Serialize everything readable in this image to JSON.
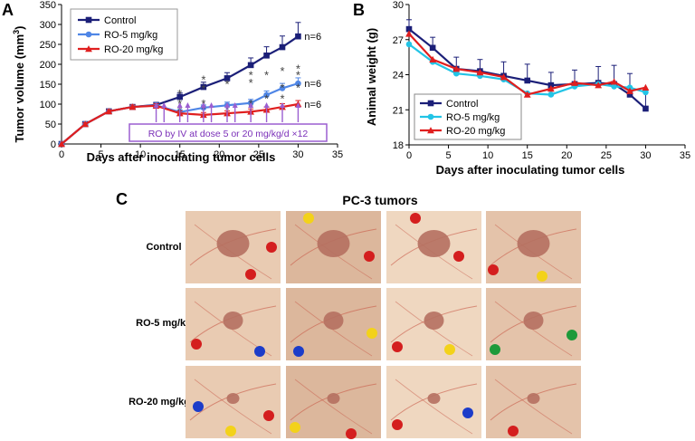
{
  "figure": {
    "panel_a_letter": "A",
    "panel_b_letter": "B",
    "panel_c_letter": "C"
  },
  "chart_data": [
    {
      "type": "line",
      "panel": "A",
      "xlabel": "Days after inoculating tumor cells",
      "ylabel_main": "Tumor volume (mm",
      "ylabel_sup": "3",
      "ylabel_end": ")",
      "xlim": [
        0,
        35
      ],
      "ylim": [
        0,
        350
      ],
      "xticks": [
        0,
        5,
        10,
        15,
        20,
        25,
        30,
        35
      ],
      "yticks": [
        0,
        50,
        100,
        150,
        200,
        250,
        300,
        350
      ],
      "grid": false,
      "legend_position": "top-left",
      "series": [
        {
          "name": "Control",
          "color": "#1b1f78",
          "marker": "square",
          "x": [
            0,
            3,
            6,
            9,
            12,
            15,
            18,
            21,
            24,
            26,
            28,
            30
          ],
          "y": [
            0,
            50,
            82,
            93,
            98,
            118,
            143,
            165,
            198,
            222,
            243,
            270
          ],
          "err": [
            0,
            3,
            4,
            5,
            6,
            10,
            12,
            14,
            18,
            22,
            28,
            35
          ]
        },
        {
          "name": "RO-5 mg/kg",
          "color": "#4f86e6",
          "marker": "circle",
          "x": [
            0,
            3,
            6,
            9,
            12,
            15,
            18,
            21,
            24,
            26,
            28,
            30
          ],
          "y": [
            0,
            50,
            82,
            93,
            97,
            80,
            91,
            97,
            103,
            123,
            140,
            152
          ],
          "err": [
            0,
            3,
            4,
            5,
            5,
            6,
            7,
            8,
            9,
            10,
            12,
            14
          ]
        },
        {
          "name": "RO-20 mg/kg",
          "color": "#e01f1f",
          "marker": "triangle",
          "x": [
            0,
            3,
            6,
            9,
            12,
            15,
            18,
            21,
            24,
            26,
            28,
            30
          ],
          "y": [
            0,
            50,
            82,
            93,
            96,
            77,
            73,
            77,
            81,
            86,
            93,
            100
          ],
          "err": [
            0,
            3,
            4,
            5,
            5,
            6,
            6,
            6,
            7,
            7,
            8,
            9
          ]
        }
      ],
      "annotations": {
        "n_labels": [
          "n=6",
          "n=6",
          "n=6"
        ],
        "treatment_box": "RO by IV at dose 5 or 20 mg/kg/d ×12",
        "treatment_days": [
          12,
          13,
          15,
          16,
          18,
          19,
          21,
          22,
          24,
          26,
          28,
          30
        ],
        "asterisk": "*",
        "star_upper": [
          [
            15,
            125
          ],
          [
            18,
            138
          ],
          [
            18,
            160
          ],
          [
            21,
            149
          ],
          [
            24,
            152
          ],
          [
            24,
            172
          ],
          [
            26,
            172
          ],
          [
            28,
            140
          ],
          [
            28,
            182
          ],
          [
            30,
            172
          ],
          [
            30,
            188
          ]
        ],
        "star_lower": [
          [
            15,
            100
          ],
          [
            15,
            82
          ],
          [
            18,
            100
          ],
          [
            18,
            87
          ],
          [
            21,
            85
          ],
          [
            24,
            100
          ],
          [
            24,
            90
          ],
          [
            26,
            113
          ],
          [
            28,
            113
          ],
          [
            30,
            140
          ]
        ]
      }
    },
    {
      "type": "line",
      "panel": "B",
      "xlabel": "Days after inoculating tumor cells",
      "ylabel": "Animal weight (g)",
      "xlim": [
        0,
        35
      ],
      "ylim": [
        18,
        30
      ],
      "xticks": [
        0,
        5,
        10,
        15,
        20,
        25,
        30,
        35
      ],
      "yticks": [
        18,
        21,
        24,
        27,
        30
      ],
      "grid": false,
      "legend_position": "bottom-left",
      "series": [
        {
          "name": "Control",
          "color": "#1b1f78",
          "marker": "square",
          "x": [
            0,
            3,
            6,
            9,
            12,
            15,
            18,
            21,
            24,
            26,
            28,
            30
          ],
          "y": [
            27.9,
            26.3,
            24.5,
            24.3,
            23.9,
            23.5,
            23.1,
            23.2,
            23.3,
            23.2,
            22.3,
            21.1
          ],
          "err": [
            0.8,
            0.9,
            1.0,
            1.0,
            1.2,
            1.4,
            1.1,
            1.2,
            1.4,
            1.6,
            1.8,
            1.6
          ]
        },
        {
          "name": "RO-5 mg/kg",
          "color": "#22c4e6",
          "marker": "circle",
          "x": [
            0,
            3,
            6,
            9,
            12,
            15,
            18,
            21,
            24,
            26,
            28,
            30
          ],
          "y": [
            26.6,
            25.1,
            24.1,
            23.9,
            23.6,
            22.4,
            22.3,
            23.0,
            23.2,
            23.0,
            22.9,
            22.5
          ],
          "err": [
            0,
            0,
            0,
            0,
            0,
            0,
            0,
            0,
            0,
            0,
            0,
            0
          ]
        },
        {
          "name": "RO-20 mg/kg",
          "color": "#e01f1f",
          "marker": "triangle",
          "x": [
            0,
            3,
            6,
            9,
            12,
            15,
            18,
            21,
            24,
            26,
            28,
            30
          ],
          "y": [
            27.5,
            25.3,
            24.5,
            24.2,
            23.8,
            22.3,
            22.8,
            23.3,
            23.1,
            23.4,
            22.6,
            22.9
          ],
          "err": [
            0,
            0,
            0,
            0,
            0,
            0,
            0,
            0,
            0,
            0,
            0,
            0
          ]
        }
      ]
    }
  ],
  "panel_c": {
    "title": "PC-3 tumors",
    "rows": [
      {
        "label": "Control"
      },
      {
        "label": "RO-5 mg/kg"
      },
      {
        "label": "RO-20 mg/kg"
      }
    ],
    "tissue_colors": [
      "#e9cbb2",
      "#dcb79c",
      "#efd7c0",
      "#e4c3aa"
    ],
    "tumor_color": "#b57060",
    "marker_colors": [
      "#d41e1e",
      "#f3d21a",
      "#1c3cc9",
      "#1e9a3a"
    ]
  }
}
